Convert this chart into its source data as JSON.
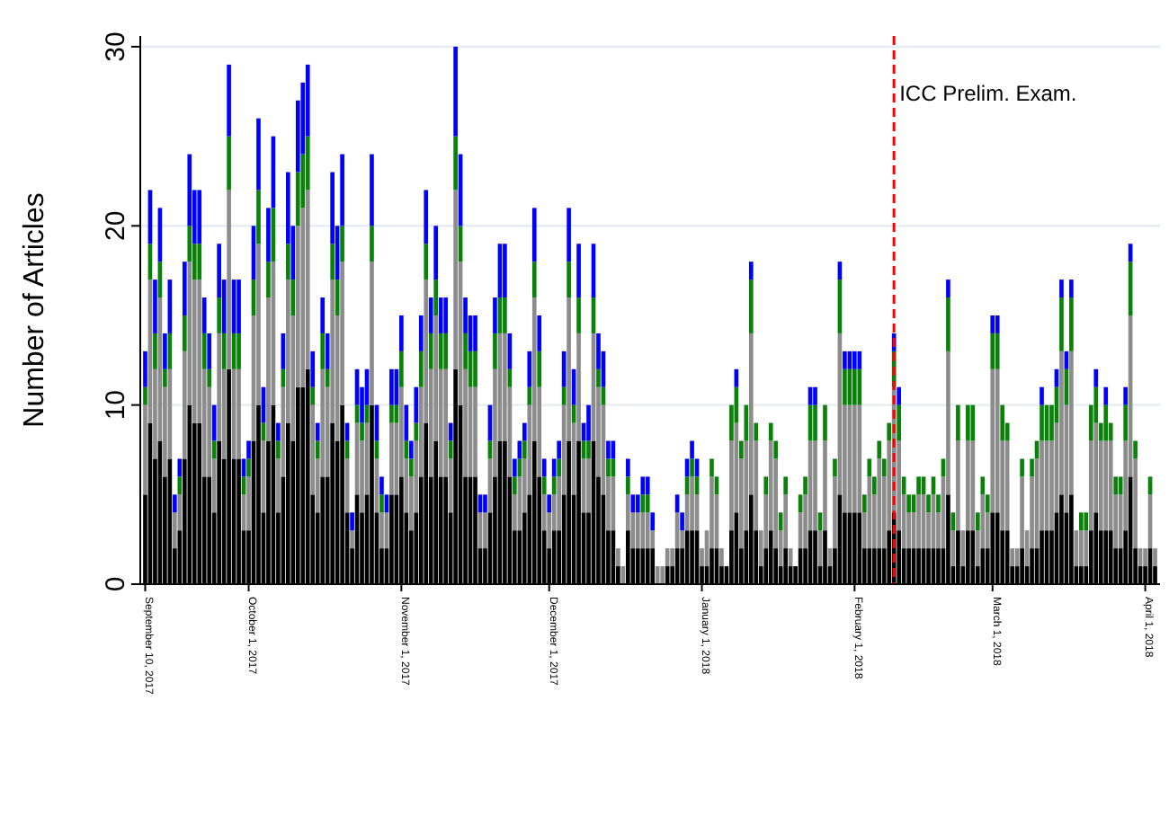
{
  "chart_data": {
    "type": "bar",
    "stacked": true,
    "ylabel": "Number of Articles",
    "grid": "y",
    "x": [
      "2017-09-10",
      "2017-09-11",
      "2017-09-12",
      "2017-09-13",
      "2017-09-14",
      "2017-09-15",
      "2017-09-16",
      "2017-09-17",
      "2017-09-18",
      "2017-09-19",
      "2017-09-20",
      "2017-09-21",
      "2017-09-22",
      "2017-09-23",
      "2017-09-24",
      "2017-09-25",
      "2017-09-26",
      "2017-09-27",
      "2017-09-28",
      "2017-09-29",
      "2017-09-30",
      "2017-10-01",
      "2017-10-02",
      "2017-10-03",
      "2017-10-04",
      "2017-10-05",
      "2017-10-06",
      "2017-10-07",
      "2017-10-08",
      "2017-10-09",
      "2017-10-10",
      "2017-10-11",
      "2017-10-12",
      "2017-10-13",
      "2017-10-14",
      "2017-10-15",
      "2017-10-16",
      "2017-10-17",
      "2017-10-18",
      "2017-10-19",
      "2017-10-20",
      "2017-10-21",
      "2017-10-22",
      "2017-10-23",
      "2017-10-24",
      "2017-10-25",
      "2017-10-26",
      "2017-10-27",
      "2017-10-28",
      "2017-10-29",
      "2017-10-30",
      "2017-10-31",
      "2017-11-01",
      "2017-11-02",
      "2017-11-03",
      "2017-11-04",
      "2017-11-05",
      "2017-11-06",
      "2017-11-07",
      "2017-11-08",
      "2017-11-09",
      "2017-11-10",
      "2017-11-11",
      "2017-11-12",
      "2017-11-13",
      "2017-11-14",
      "2017-11-15",
      "2017-11-16",
      "2017-11-17",
      "2017-11-18",
      "2017-11-19",
      "2017-11-20",
      "2017-11-21",
      "2017-11-22",
      "2017-11-23",
      "2017-11-24",
      "2017-11-25",
      "2017-11-26",
      "2017-11-27",
      "2017-11-28",
      "2017-11-29",
      "2017-11-30",
      "2017-12-01",
      "2017-12-02",
      "2017-12-03",
      "2017-12-04",
      "2017-12-05",
      "2017-12-06",
      "2017-12-07",
      "2017-12-08",
      "2017-12-09",
      "2017-12-10",
      "2017-12-11",
      "2017-12-12",
      "2017-12-13",
      "2017-12-14",
      "2017-12-15",
      "2017-12-16",
      "2017-12-17",
      "2017-12-18",
      "2017-12-19",
      "2017-12-20",
      "2017-12-21",
      "2017-12-22",
      "2017-12-23",
      "2017-12-24",
      "2017-12-25",
      "2017-12-26",
      "2017-12-27",
      "2017-12-28",
      "2017-12-29",
      "2017-12-30",
      "2017-12-31",
      "2018-01-01",
      "2018-01-02",
      "2018-01-03",
      "2018-01-04",
      "2018-01-05",
      "2018-01-06",
      "2018-01-07",
      "2018-01-08",
      "2018-01-09",
      "2018-01-10",
      "2018-01-11",
      "2018-01-12",
      "2018-01-13",
      "2018-01-14",
      "2018-01-15",
      "2018-01-16",
      "2018-01-17",
      "2018-01-18",
      "2018-01-19",
      "2018-01-20",
      "2018-01-21",
      "2018-01-22",
      "2018-01-23",
      "2018-01-24",
      "2018-01-25",
      "2018-01-26",
      "2018-01-27",
      "2018-01-28",
      "2018-01-29",
      "2018-01-30",
      "2018-01-31",
      "2018-02-01",
      "2018-02-02",
      "2018-02-03",
      "2018-02-04",
      "2018-02-05",
      "2018-02-06",
      "2018-02-07",
      "2018-02-08",
      "2018-02-09",
      "2018-02-10",
      "2018-02-11",
      "2018-02-12",
      "2018-02-13",
      "2018-02-14",
      "2018-02-15",
      "2018-02-16",
      "2018-02-17",
      "2018-02-18",
      "2018-02-19",
      "2018-02-20",
      "2018-02-21",
      "2018-02-22",
      "2018-02-23",
      "2018-02-24",
      "2018-02-25",
      "2018-02-26",
      "2018-02-27",
      "2018-02-28",
      "2018-03-01",
      "2018-03-02",
      "2018-03-03",
      "2018-03-04",
      "2018-03-05",
      "2018-03-06",
      "2018-03-07",
      "2018-03-08",
      "2018-03-09",
      "2018-03-10",
      "2018-03-11",
      "2018-03-12",
      "2018-03-13",
      "2018-03-14",
      "2018-03-15",
      "2018-03-16",
      "2018-03-17",
      "2018-03-18",
      "2018-03-19",
      "2018-03-20",
      "2018-03-21",
      "2018-03-22",
      "2018-03-23",
      "2018-03-24",
      "2018-03-25",
      "2018-03-26",
      "2018-03-27",
      "2018-03-28",
      "2018-03-29",
      "2018-03-30",
      "2018-03-31",
      "2018-04-01",
      "2018-04-02",
      "2018-04-03"
    ],
    "xlim": [
      "2017-09-09",
      "2018-04-04"
    ],
    "xticks": [
      {
        "value": "2017-09-10",
        "label": "September 10, 2017"
      },
      {
        "value": "2017-10-01",
        "label": "October 1, 2017"
      },
      {
        "value": "2017-11-01",
        "label": "November 1, 2017"
      },
      {
        "value": "2017-12-01",
        "label": "December 1, 2017"
      },
      {
        "value": "2018-01-01",
        "label": "January 1, 2018"
      },
      {
        "value": "2018-02-01",
        "label": "February 1, 2018"
      },
      {
        "value": "2018-03-01",
        "label": "March 1, 2018"
      },
      {
        "value": "2018-04-01",
        "label": "April 1, 2018"
      }
    ],
    "ylim": [
      0,
      30.6
    ],
    "yticks": [
      0,
      10,
      20,
      30
    ],
    "ref_lines": [
      {
        "axis": "x",
        "value": "2018-02-09",
        "label": "ICC Prelim. Exam.",
        "color": "#ff0000",
        "line_style": "dashed"
      }
    ],
    "series": [
      {
        "color": "#000000",
        "values": [
          5,
          9,
          7,
          8,
          6,
          7,
          2,
          3,
          7,
          10,
          9,
          9,
          6,
          6,
          4,
          8,
          7,
          12,
          7,
          7,
          3,
          3,
          8,
          10,
          4,
          8,
          10,
          4,
          6,
          9,
          8,
          11,
          11,
          12,
          5,
          4,
          6,
          6,
          9,
          8,
          10,
          4,
          2,
          5,
          4,
          5,
          10,
          4,
          2,
          2,
          5,
          5,
          6,
          4,
          3,
          4,
          6,
          9,
          6,
          8,
          6,
          6,
          4,
          12,
          10,
          6,
          6,
          6,
          2,
          2,
          4,
          6,
          8,
          8,
          6,
          3,
          3,
          4,
          5,
          8,
          6,
          3,
          2,
          3,
          3,
          5,
          8,
          5,
          8,
          4,
          4,
          8,
          6,
          5,
          3,
          3,
          1,
          0,
          3,
          2,
          2,
          2,
          2,
          2,
          0,
          0,
          1,
          1,
          2,
          2,
          3,
          3,
          3,
          1,
          1,
          2,
          2,
          1,
          1,
          3,
          4,
          2,
          3,
          5,
          3,
          1,
          2,
          3,
          2,
          1,
          2,
          1,
          1,
          2,
          2,
          3,
          3,
          1,
          3,
          1,
          2,
          5,
          4,
          4,
          4,
          4,
          2,
          2,
          2,
          2,
          2,
          3,
          4,
          3,
          2,
          2,
          2,
          2,
          2,
          2,
          2,
          2,
          2,
          5,
          1,
          3,
          1,
          3,
          3,
          1,
          2,
          2,
          4,
          4,
          3,
          3,
          1,
          1,
          2,
          1,
          2,
          2,
          3,
          3,
          3,
          4,
          5,
          4,
          5,
          1,
          1,
          1,
          3,
          4,
          3,
          3,
          3,
          2,
          2,
          3,
          6,
          2,
          1,
          1,
          2,
          1
        ]
      },
      {
        "color": "#8c8c8c",
        "values": [
          5,
          8,
          5,
          8,
          5,
          5,
          2,
          2,
          6,
          8,
          8,
          8,
          6,
          5,
          3,
          6,
          5,
          10,
          5,
          5,
          2,
          3,
          7,
          9,
          4,
          8,
          8,
          3,
          5,
          8,
          7,
          9,
          10,
          10,
          5,
          3,
          6,
          5,
          8,
          7,
          8,
          3,
          1,
          4,
          4,
          4,
          8,
          3,
          2,
          2,
          4,
          4,
          5,
          3,
          3,
          4,
          5,
          8,
          6,
          7,
          6,
          6,
          3,
          10,
          8,
          6,
          5,
          5,
          2,
          2,
          3,
          6,
          6,
          6,
          5,
          2,
          3,
          3,
          5,
          8,
          5,
          2,
          2,
          2,
          3,
          5,
          8,
          4,
          6,
          3,
          3,
          6,
          5,
          5,
          3,
          3,
          1,
          1,
          2,
          2,
          2,
          2,
          2,
          1,
          1,
          1,
          1,
          1,
          2,
          1,
          2,
          3,
          2,
          1,
          2,
          4,
          3,
          1,
          0,
          5,
          5,
          5,
          5,
          9,
          5,
          2,
          3,
          5,
          5,
          2,
          3,
          1,
          0,
          2,
          3,
          5,
          5,
          2,
          5,
          1,
          4,
          9,
          6,
          6,
          6,
          6,
          2,
          4,
          3,
          5,
          4,
          5,
          7,
          5,
          3,
          2,
          2,
          3,
          3,
          2,
          3,
          2,
          4,
          8,
          2,
          5,
          2,
          5,
          5,
          2,
          3,
          2,
          8,
          8,
          5,
          5,
          1,
          1,
          4,
          2,
          4,
          5,
          5,
          5,
          5,
          5,
          8,
          6,
          8,
          2,
          2,
          2,
          5,
          5,
          5,
          5,
          5,
          3,
          3,
          5,
          9,
          5,
          1,
          1,
          3,
          1
        ]
      },
      {
        "color": "#0a820a",
        "values": [
          1,
          2,
          2,
          2,
          1,
          2,
          0,
          1,
          2,
          2,
          2,
          2,
          2,
          1,
          1,
          2,
          2,
          3,
          2,
          2,
          1,
          1,
          2,
          3,
          1,
          2,
          3,
          1,
          1,
          2,
          2,
          3,
          3,
          3,
          1,
          1,
          2,
          1,
          2,
          2,
          2,
          1,
          0,
          1,
          1,
          1,
          2,
          1,
          1,
          0,
          1,
          1,
          2,
          1,
          1,
          1,
          2,
          2,
          2,
          2,
          2,
          2,
          1,
          3,
          2,
          2,
          2,
          2,
          0,
          0,
          1,
          2,
          2,
          2,
          1,
          1,
          1,
          1,
          1,
          2,
          2,
          1,
          0,
          1,
          1,
          1,
          2,
          1,
          2,
          1,
          1,
          2,
          1,
          1,
          1,
          1,
          0,
          0,
          1,
          0,
          0,
          1,
          1,
          0,
          0,
          0,
          0,
          0,
          0,
          0,
          1,
          1,
          1,
          0,
          0,
          1,
          1,
          0,
          0,
          2,
          2,
          1,
          2,
          3,
          1,
          0,
          1,
          1,
          1,
          1,
          1,
          0,
          0,
          1,
          1,
          2,
          2,
          1,
          2,
          0,
          1,
          3,
          2,
          2,
          2,
          2,
          1,
          1,
          1,
          1,
          1,
          1,
          2,
          2,
          1,
          1,
          1,
          1,
          1,
          1,
          1,
          1,
          1,
          3,
          1,
          2,
          0,
          2,
          2,
          1,
          1,
          1,
          2,
          2,
          2,
          1,
          0,
          0,
          1,
          0,
          1,
          1,
          2,
          2,
          2,
          2,
          3,
          2,
          3,
          0,
          1,
          1,
          2,
          2,
          1,
          2,
          1,
          1,
          1,
          2,
          3,
          1,
          0,
          0,
          1,
          0
        ]
      },
      {
        "color": "#0000ff",
        "values": [
          2,
          3,
          3,
          3,
          2,
          3,
          1,
          1,
          3,
          4,
          3,
          3,
          2,
          2,
          2,
          3,
          3,
          4,
          3,
          3,
          1,
          1,
          3,
          4,
          2,
          3,
          4,
          1,
          2,
          4,
          3,
          4,
          4,
          4,
          2,
          1,
          2,
          2,
          4,
          3,
          4,
          1,
          1,
          2,
          2,
          2,
          4,
          2,
          1,
          1,
          2,
          2,
          2,
          2,
          1,
          2,
          2,
          3,
          2,
          3,
          2,
          2,
          1,
          5,
          4,
          2,
          2,
          2,
          1,
          1,
          2,
          2,
          3,
          3,
          2,
          1,
          1,
          1,
          2,
          3,
          2,
          1,
          1,
          1,
          1,
          2,
          3,
          2,
          3,
          1,
          2,
          3,
          2,
          2,
          1,
          1,
          0,
          0,
          1,
          1,
          1,
          1,
          1,
          1,
          0,
          0,
          0,
          0,
          1,
          1,
          1,
          1,
          1,
          0,
          0,
          0,
          0,
          0,
          0,
          0,
          1,
          0,
          0,
          1,
          0,
          0,
          0,
          0,
          0,
          0,
          0,
          0,
          0,
          0,
          0,
          1,
          1,
          0,
          0,
          0,
          0,
          1,
          1,
          1,
          1,
          1,
          0,
          0,
          0,
          0,
          0,
          0,
          1,
          1,
          0,
          0,
          0,
          0,
          0,
          0,
          0,
          0,
          0,
          1,
          0,
          0,
          0,
          0,
          0,
          0,
          0,
          0,
          1,
          1,
          0,
          0,
          0,
          0,
          0,
          0,
          0,
          0,
          1,
          0,
          0,
          1,
          1,
          1,
          1,
          0,
          0,
          0,
          0,
          1,
          0,
          1,
          0,
          0,
          0,
          1,
          1,
          0,
          0,
          0,
          0,
          0
        ]
      }
    ]
  }
}
